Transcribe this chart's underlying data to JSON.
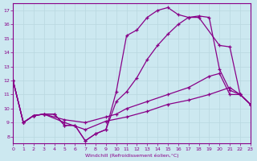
{
  "xlabel": "Windchill (Refroidissement éolien,°C)",
  "xlim": [
    0,
    23
  ],
  "ylim": [
    7.5,
    17.5
  ],
  "xticks": [
    0,
    1,
    2,
    3,
    4,
    5,
    6,
    7,
    8,
    9,
    10,
    11,
    12,
    13,
    14,
    15,
    16,
    17,
    18,
    19,
    20,
    21,
    22,
    23
  ],
  "yticks": [
    8,
    9,
    10,
    11,
    12,
    13,
    14,
    15,
    16,
    17
  ],
  "bg_color": "#cce8f0",
  "line_color": "#880088",
  "grid_color": "#b8d8e0",
  "line1_x": [
    0,
    1,
    2,
    3,
    4,
    5,
    6,
    7,
    8,
    9,
    10,
    11,
    12,
    13,
    14,
    15,
    16,
    17,
    18,
    20,
    21,
    22,
    23
  ],
  "line1_y": [
    12.0,
    9.0,
    9.5,
    9.6,
    9.6,
    8.8,
    8.8,
    7.7,
    8.2,
    8.5,
    11.2,
    15.2,
    15.6,
    16.5,
    17.0,
    17.2,
    16.7,
    16.5,
    16.5,
    14.5,
    14.4,
    11.0,
    10.3
  ],
  "line2_x": [
    0,
    1,
    2,
    3,
    4,
    5,
    6,
    7,
    8,
    9,
    10,
    11,
    12,
    13,
    14,
    15,
    16,
    17,
    18,
    19,
    20,
    21,
    22,
    23
  ],
  "line2_y": [
    12.0,
    9.0,
    9.5,
    9.6,
    9.6,
    8.8,
    8.8,
    7.7,
    8.2,
    8.5,
    10.5,
    11.2,
    12.2,
    13.5,
    14.5,
    15.3,
    16.0,
    16.5,
    16.6,
    16.5,
    12.8,
    11.3,
    11.0,
    10.3
  ],
  "line3_x": [
    0,
    1,
    2,
    3,
    5,
    7,
    9,
    10,
    11,
    13,
    15,
    17,
    19,
    20,
    21,
    22,
    23
  ],
  "line3_y": [
    12.0,
    9.0,
    9.5,
    9.6,
    9.2,
    9.0,
    9.4,
    9.6,
    10.0,
    10.5,
    11.0,
    11.5,
    12.3,
    12.5,
    11.0,
    11.0,
    10.3
  ],
  "line4_x": [
    0,
    1,
    2,
    3,
    5,
    7,
    9,
    11,
    13,
    15,
    17,
    19,
    21,
    22,
    23
  ],
  "line4_y": [
    12.0,
    9.0,
    9.5,
    9.6,
    9.0,
    8.5,
    9.1,
    9.4,
    9.8,
    10.3,
    10.6,
    11.0,
    11.5,
    11.0,
    10.3
  ]
}
